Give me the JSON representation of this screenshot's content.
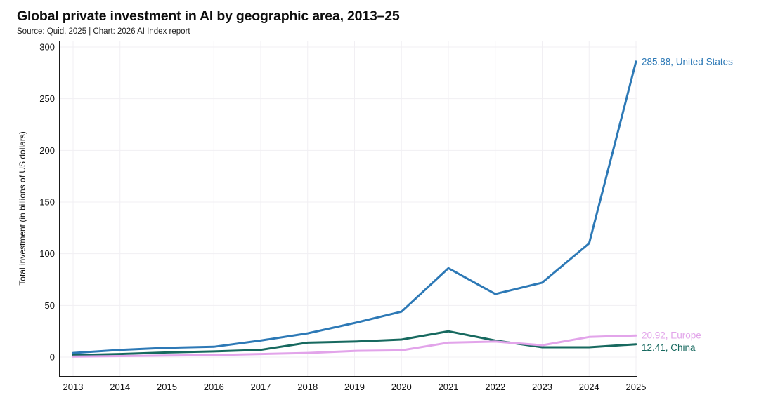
{
  "header": {
    "title": "Global private investment in AI by geographic area, 2013–25",
    "subtitle": "Source: Quid, 2025 | Chart: 2026 AI Index report"
  },
  "chart_data": {
    "type": "line",
    "title": "Global private investment in AI by geographic area, 2013–25",
    "subtitle": "Source: Quid, 2025 | Chart: 2026 AI Index report",
    "xlabel": "",
    "ylabel": "Total investment (in billions of US dollars)",
    "x": [
      2013,
      2014,
      2015,
      2016,
      2017,
      2018,
      2019,
      2020,
      2021,
      2022,
      2023,
      2024,
      2025
    ],
    "series": [
      {
        "name": "United States",
        "color": "#2d79b6",
        "values": [
          4,
          7,
          9,
          10,
          16,
          23,
          33,
          44,
          86,
          61,
          72,
          110,
          285.88
        ],
        "end_label": "285.88, United States"
      },
      {
        "name": "China",
        "color": "#17695f",
        "values": [
          2,
          3,
          4.5,
          5.5,
          7,
          14,
          15,
          17,
          25,
          16,
          9.5,
          9.5,
          12.41
        ],
        "end_label": "12.41, China"
      },
      {
        "name": "Europe",
        "color": "#e2a4ea",
        "values": [
          0.5,
          1,
          1.5,
          2,
          3,
          4,
          6,
          6.5,
          14,
          15,
          11.5,
          19.5,
          20.92
        ],
        "end_label": "20.92, Europe"
      }
    ],
    "yticks": [
      0,
      50,
      100,
      150,
      200,
      250,
      300
    ],
    "ylim": [
      0,
      300
    ],
    "grid": true,
    "legend_position": "line-end-labels",
    "colors": {
      "axis": "#1a1a1a",
      "grid": "#f1eff3",
      "text": "#111111",
      "background": "#ffffff"
    }
  }
}
